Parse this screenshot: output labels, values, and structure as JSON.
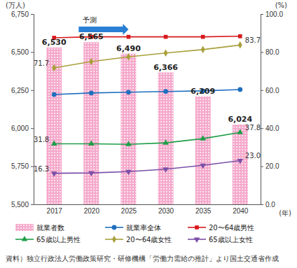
{
  "chart_data": {
    "type": "bar",
    "categories": [
      "2017",
      "2020",
      "2025",
      "2030",
      "2035",
      "2040"
    ],
    "x_label": "(年)",
    "y_label": "(万人)",
    "y2_label": "(%)",
    "ylim": [
      5500,
      6750
    ],
    "yticks": [
      {
        "value": 5500,
        "label": "5,500"
      },
      {
        "value": 5750,
        "label": "5,750"
      },
      {
        "value": 6000,
        "label": "6,000"
      },
      {
        "value": 6250,
        "label": "6,250"
      },
      {
        "value": 6500,
        "label": "6,500"
      },
      {
        "value": 6750,
        "label": "6,750"
      }
    ],
    "y2lim": [
      0,
      100
    ],
    "y2ticks": [
      {
        "value": 0,
        "label": "0.0"
      },
      {
        "value": 20,
        "label": "20.0"
      },
      {
        "value": 40,
        "label": "40.0"
      },
      {
        "value": 60,
        "label": "60.0"
      },
      {
        "value": 80,
        "label": "80.0"
      },
      {
        "value": 100,
        "label": "100.0"
      }
    ],
    "grid": false,
    "legend": "bottom",
    "annotations": [
      {
        "text": "予測",
        "span": [
          "2020",
          "2025"
        ]
      }
    ],
    "source": "資料）独立行政法人労働政策研究・研修機構「労働力需給の推計」より国土交通省作成",
    "series": [
      {
        "name": "就業者数",
        "type": "bar",
        "color": "#f5a9cb",
        "values": [
          6530,
          6565,
          6490,
          6366,
          6209,
          6024
        ],
        "value_labels": [
          "6,530",
          "6,565",
          "6,490",
          "6,366",
          "6,209",
          "6,024"
        ],
        "data_labels": true
      },
      {
        "name": "就業率全体",
        "type": "line",
        "axis": "y2",
        "color": "#1f6fbf",
        "marker": "circle",
        "values": [
          57.7,
          58.5,
          58.9,
          59.3,
          59.6,
          60.3
        ]
      },
      {
        "name": "20〜64歳男性",
        "type": "line",
        "axis": "y2",
        "color": "#d7191c",
        "marker": "square",
        "values": [
          87.5,
          88.0,
          88.0,
          88.0,
          88.0,
          88.3
        ]
      },
      {
        "name": "65歳以上男性",
        "type": "line",
        "axis": "y2",
        "color": "#1e9e48",
        "marker": "triangle",
        "values": [
          31.8,
          31.8,
          31.5,
          32.3,
          34.5,
          37.8
        ],
        "value_labels": [
          "31.8",
          null,
          null,
          null,
          null,
          "37.8"
        ],
        "data_labels": true
      },
      {
        "name": "20〜64歳女性",
        "type": "line",
        "axis": "y2",
        "color": "#a9a03c",
        "marker": "diamond",
        "values": [
          71.7,
          75.0,
          77.5,
          79.5,
          81.3,
          83.7
        ],
        "value_labels": [
          "71.7",
          null,
          null,
          null,
          null,
          "83.7"
        ],
        "data_labels": true
      },
      {
        "name": "65歳以上女性",
        "type": "line",
        "axis": "y2",
        "color": "#7b4fa8",
        "marker": "triangle-down",
        "values": [
          16.3,
          16.5,
          17.2,
          18.5,
          20.5,
          23.0
        ],
        "value_labels": [
          "16.3",
          null,
          null,
          null,
          null,
          "23.0"
        ],
        "data_labels": true
      }
    ]
  }
}
